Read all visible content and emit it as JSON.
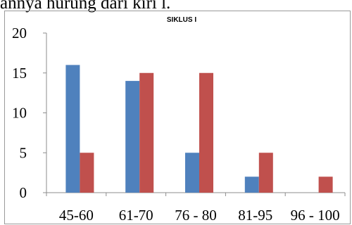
{
  "caption": "annya hurung dari kiri l.",
  "chart_data": {
    "type": "bar",
    "title": "SIKLUS I",
    "categories": [
      "45-60",
      "61-70",
      "76 - 80",
      "81-95",
      "96 - 100"
    ],
    "series": [
      {
        "values": [
          16,
          14,
          5,
          2,
          0
        ],
        "color": "#4f81bd"
      },
      {
        "values": [
          5,
          15,
          15,
          5,
          2
        ],
        "color": "#c0504d"
      }
    ],
    "ylim": [
      0,
      20
    ],
    "yticks": [
      0,
      5,
      10,
      15,
      20
    ],
    "grid": false,
    "legend": "none"
  }
}
